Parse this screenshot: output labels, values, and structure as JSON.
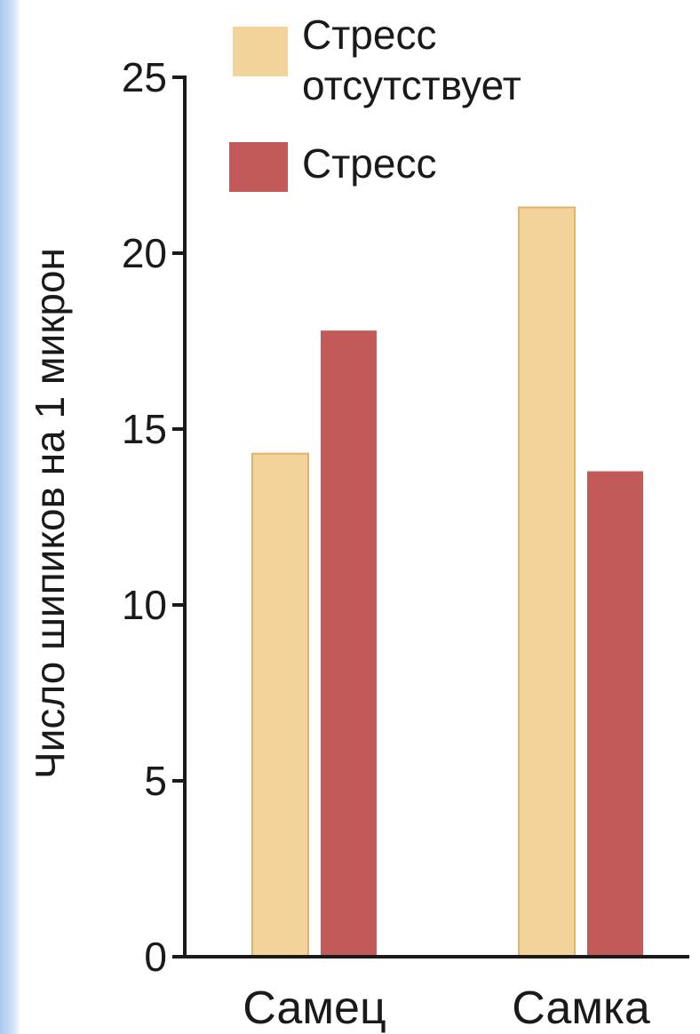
{
  "chart_data": {
    "type": "bar",
    "categories": [
      "Самец",
      "Самка"
    ],
    "series": [
      {
        "name": "Стресс отсутствует",
        "name_lines": [
          "Стресс",
          "отсутствует"
        ],
        "values": [
          14.3,
          21.3
        ],
        "color": "#f2d49a"
      },
      {
        "name": "Стресс",
        "name_lines": [
          "Стресс"
        ],
        "values": [
          17.8,
          13.8
        ],
        "color": "#c25a5a"
      }
    ],
    "ylabel": "Число шипиков на 1 микрон",
    "xlabel": "",
    "ylim": [
      0,
      25
    ],
    "yticks": [
      0,
      5,
      10,
      15,
      20,
      25
    ],
    "ytick_labels": [
      "0",
      "5",
      "10",
      "15",
      "20",
      "25"
    ],
    "grid": false,
    "legend_position": "top-right",
    "bar_edge_color": "#e0b36e"
  }
}
